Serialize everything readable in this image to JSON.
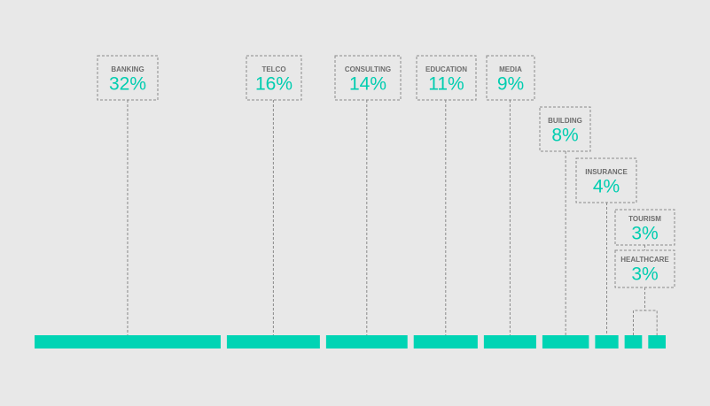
{
  "chart_data": {
    "type": "segmented-bar",
    "color": "#00d4b4",
    "categories": [
      "BANKING",
      "TELCO",
      "CONSULTING",
      "EDUCATION",
      "MEDIA",
      "BUILDING",
      "INSURANCE",
      "TOURISM",
      "HEALTHCARE"
    ],
    "values": [
      32,
      16,
      14,
      11,
      9,
      8,
      4,
      3,
      3
    ],
    "value_labels": [
      "32%",
      "16%",
      "14%",
      "11%",
      "9%",
      "8%",
      "4%",
      "3%",
      "3%"
    ]
  }
}
